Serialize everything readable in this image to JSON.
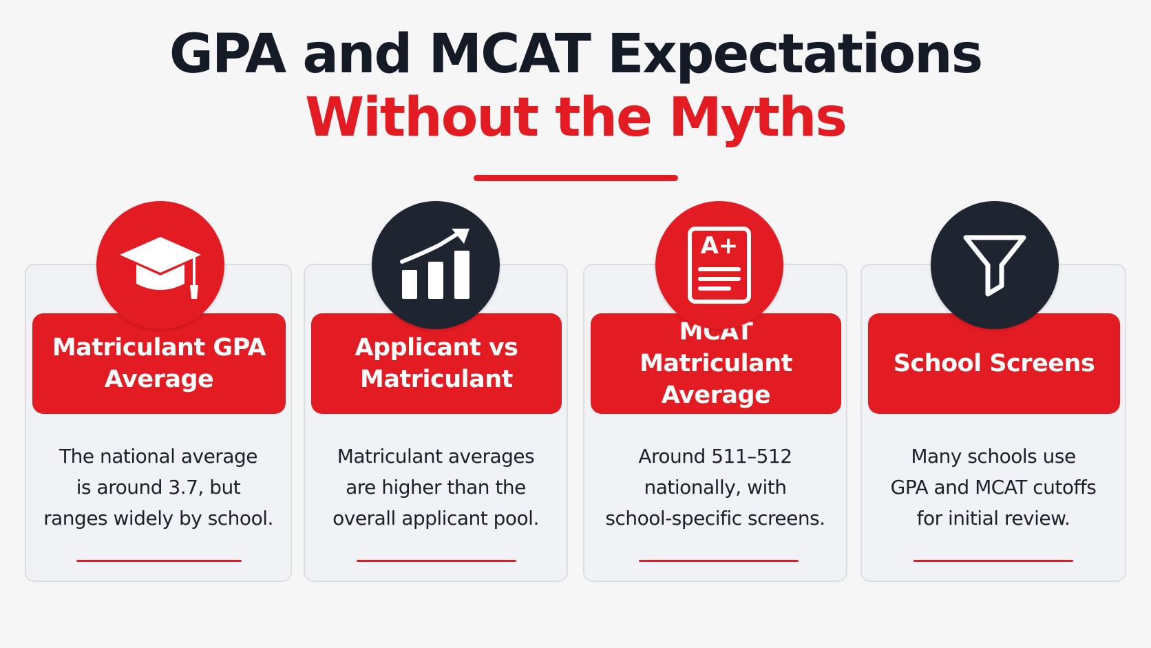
{
  "title": {
    "line1": "GPA and MCAT Expectations",
    "line2": "Without the Myths"
  },
  "colors": {
    "accent_red": "#e31b22",
    "dark_navy": "#1e2430",
    "card_background": "#f1f2f5"
  },
  "cards": [
    {
      "icon": "graduation-cap-icon",
      "badge_color": "red",
      "heading": "Matriculant GPA\nAverage",
      "body": "The national average\nis around 3.7, but\nranges widely by school."
    },
    {
      "icon": "rising-bar-chart-icon",
      "badge_color": "dark",
      "heading": "Applicant vs\nMatriculant",
      "body": "Matriculant averages\nare higher than the\noverall applicant pool."
    },
    {
      "icon": "a-plus-document-icon",
      "badge_color": "red",
      "heading": "MCAT Matriculant\nAverage",
      "icon_text": "A+",
      "body": "Around 511–512\nnationally, with\nschool-specific screens."
    },
    {
      "icon": "funnel-filter-icon",
      "badge_color": "dark",
      "heading": "School Screens",
      "body": "Many schools use\nGPA and MCAT cutoffs\nfor initial review."
    }
  ]
}
